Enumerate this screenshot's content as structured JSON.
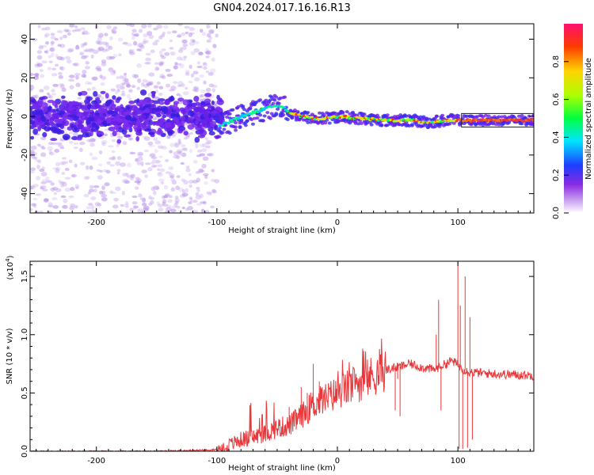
{
  "title": "GN04.2024.017.16.16.R13",
  "chart_data": [
    {
      "type": "heatmap",
      "xlabel": "Height of straight line (km)",
      "ylabel": "Frequency (Hz)",
      "xlim": [
        -255,
        163
      ],
      "ylim": [
        -50,
        48
      ],
      "xticks": [
        -200,
        -100,
        0,
        100
      ],
      "yticks": [
        -40,
        -20,
        0,
        20,
        40
      ],
      "ridge": {
        "x": [
          -100,
          -90,
          -80,
          -70,
          -60,
          -50,
          -45,
          -40,
          -30,
          -20,
          -10,
          0,
          20,
          40,
          60,
          75,
          90,
          100,
          105,
          163
        ],
        "y": [
          -5,
          -3,
          0,
          2,
          4,
          6,
          5,
          2,
          0,
          -1,
          -1,
          0,
          -1,
          -2,
          -2,
          -3,
          -2,
          -2,
          -2,
          -2
        ]
      },
      "colorbar": {
        "label": "Normalized spectral amplitude",
        "ticks": [
          0.0,
          0.2,
          0.4,
          0.6,
          0.8
        ],
        "range": [
          0,
          1
        ]
      }
    },
    {
      "type": "line",
      "xlabel": "Height of straight line (km)",
      "ylabel": "SNR (10 * v/v)",
      "scale_label": "(x10",
      "scale_exp": "4",
      "xlim": [
        -255,
        163
      ],
      "ylim": [
        0,
        1.63
      ],
      "xticks": [
        -200,
        -100,
        0,
        100
      ],
      "yticks": [
        0.0,
        0.5,
        1.0,
        1.5
      ],
      "ytick_labels": [
        "0.0",
        "0.5",
        "1.0",
        "1.5"
      ],
      "series": [
        {
          "color": "#e8383b",
          "x": [
            -255,
            -200,
            -150,
            -110,
            -95,
            -90,
            -80,
            -70,
            -60,
            -50,
            -40,
            -30,
            -20,
            -10,
            0,
            10,
            20,
            30,
            40,
            50,
            60,
            70,
            80,
            90,
            95,
            100,
            105,
            110,
            120,
            140,
            163
          ],
          "y": [
            0.0,
            0.0,
            0.0,
            0.01,
            0.02,
            0.05,
            0.1,
            0.12,
            0.15,
            0.2,
            0.22,
            0.3,
            0.4,
            0.45,
            0.5,
            0.55,
            0.6,
            0.65,
            0.7,
            0.72,
            0.75,
            0.72,
            0.7,
            0.75,
            0.78,
            0.74,
            0.7,
            0.68,
            0.67,
            0.66,
            0.65
          ]
        }
      ],
      "spikes": [
        {
          "x": 48,
          "y": 0.35
        },
        {
          "x": 50,
          "y": 0.62
        },
        {
          "x": 52,
          "y": 0.3
        },
        {
          "x": 82,
          "y": 1.0
        },
        {
          "x": 84,
          "y": 1.3
        },
        {
          "x": 86,
          "y": 0.35
        },
        {
          "x": 100,
          "y": 1.62
        },
        {
          "x": 101,
          "y": 0.02
        },
        {
          "x": 102,
          "y": 1.25
        },
        {
          "x": 104,
          "y": 0.02
        },
        {
          "x": 106,
          "y": 1.5
        },
        {
          "x": 108,
          "y": 0.03
        },
        {
          "x": 110,
          "y": 1.15
        },
        {
          "x": 112,
          "y": 0.1
        },
        {
          "x": -10,
          "y": 0.35
        },
        {
          "x": -15,
          "y": 0.6
        },
        {
          "x": -20,
          "y": 0.75
        },
        {
          "x": -25,
          "y": 0.5
        },
        {
          "x": -30,
          "y": 0.55
        },
        {
          "x": -40,
          "y": 0.38
        }
      ]
    }
  ]
}
